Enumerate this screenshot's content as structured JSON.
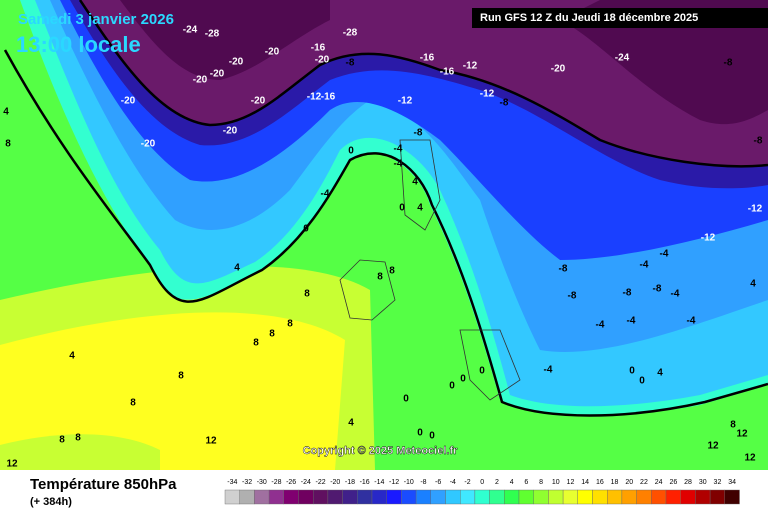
{
  "header": {
    "date": "Samedi 3 janvier 2026",
    "time": "13:00 locale",
    "run": "Run GFS 12 Z du Jeudi 18 décembre 2025"
  },
  "map": {
    "copyright": "Copyright © 2025 Meteociel.fr",
    "contour_labels": [
      -24,
      -28,
      -28,
      -20,
      -16,
      -20,
      -20,
      -20,
      -20,
      -8,
      -16,
      -16,
      -12,
      -20,
      -20,
      -12,
      -16,
      -20,
      -20,
      -12,
      -12,
      -8,
      -20,
      -24,
      -8,
      -8,
      -12,
      -12,
      -4,
      -4,
      -8,
      0,
      -4,
      0,
      4,
      4,
      0,
      4,
      -8,
      -8,
      -8,
      -4,
      -4,
      -4,
      -8,
      -4,
      -4,
      -4,
      8,
      8,
      8,
      8,
      8,
      8,
      4,
      8,
      8,
      8,
      8,
      12,
      12,
      4,
      0,
      0,
      0,
      0,
      0,
      0,
      0,
      0,
      -4,
      4,
      12,
      12,
      12,
      8,
      4,
      8,
      4
    ]
  },
  "legend": {
    "title": "Température 850hPa",
    "lead": "(+ 384h)",
    "values": [
      -34,
      -32,
      -30,
      -28,
      -26,
      -24,
      -22,
      -20,
      -18,
      -16,
      -14,
      -12,
      -10,
      -8,
      -6,
      -4,
      -2,
      0,
      2,
      4,
      6,
      8,
      10,
      12,
      14,
      16,
      18,
      20,
      22,
      24,
      26,
      28,
      30,
      32,
      34
    ],
    "colors": [
      "#d0d0d0",
      "#b0b0b0",
      "#a070a0",
      "#903090",
      "#800070",
      "#700060",
      "#601060",
      "#501a70",
      "#40208a",
      "#3030a0",
      "#2828c8",
      "#1a1aff",
      "#1a4cff",
      "#1a80ff",
      "#30a0ff",
      "#30c8ff",
      "#40e8ff",
      "#30ffd0",
      "#30ff90",
      "#30ff50",
      "#60ff30",
      "#90ff30",
      "#c0ff30",
      "#e8ff30",
      "#ffff00",
      "#ffe000",
      "#ffc000",
      "#ffa000",
      "#ff8000",
      "#ff5000",
      "#ff2000",
      "#e00000",
      "#b00000",
      "#800000",
      "#400000"
    ]
  }
}
